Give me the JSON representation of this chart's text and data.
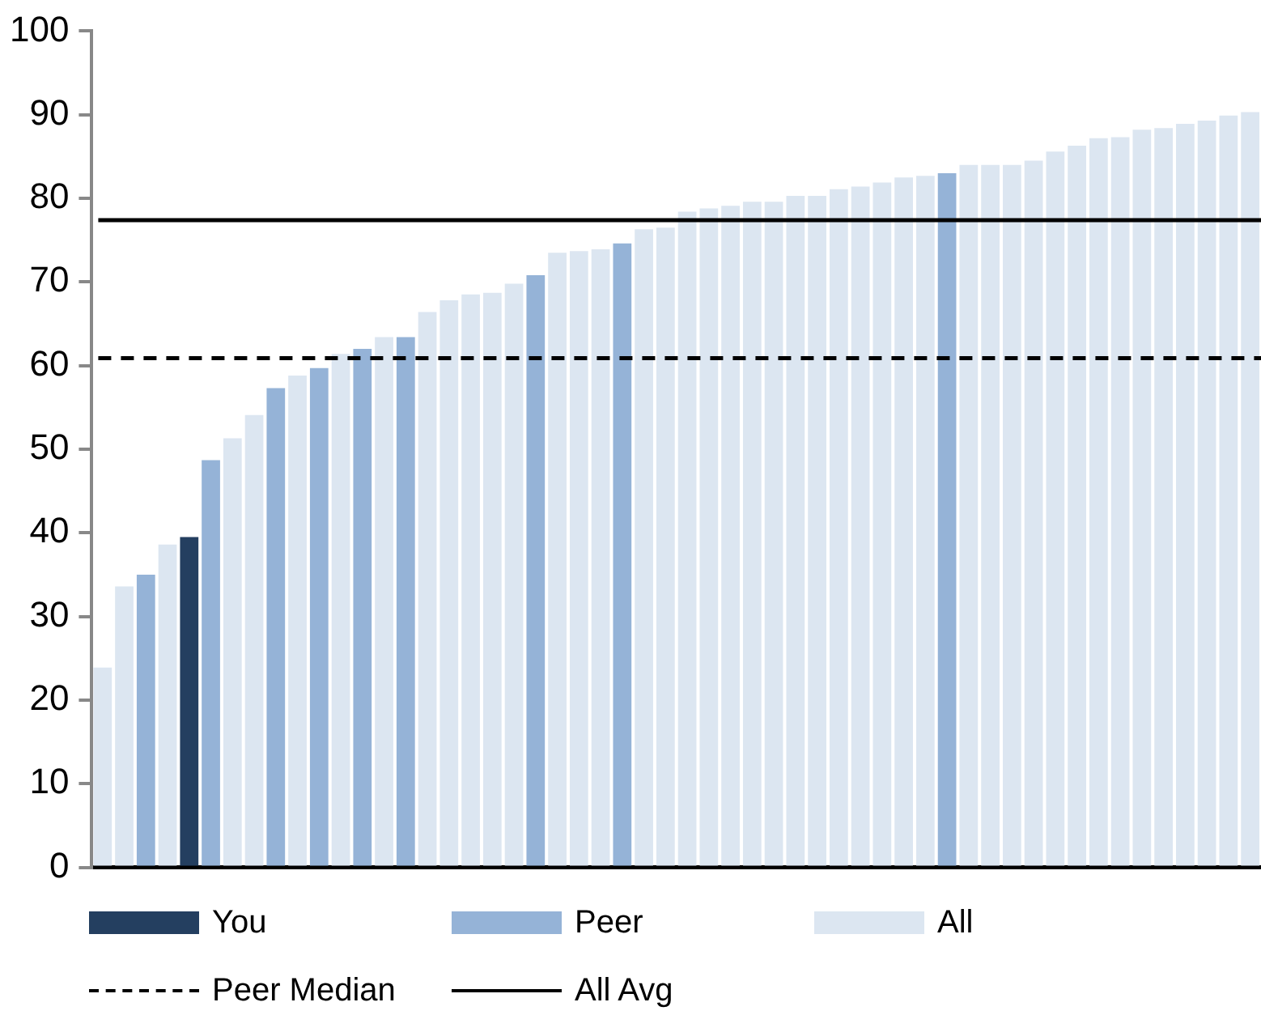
{
  "chart_data": {
    "type": "bar",
    "categories": [
      null,
      null,
      null,
      null,
      null,
      null,
      null,
      null,
      null,
      null,
      null,
      null,
      null,
      null,
      null,
      null,
      null,
      null,
      null,
      null,
      null,
      null,
      null,
      null,
      null,
      null,
      null,
      null,
      null,
      null,
      null,
      null,
      null,
      null,
      null,
      null,
      null,
      null,
      null,
      null,
      null,
      null,
      null,
      null,
      null,
      null,
      null,
      null,
      null,
      null,
      null,
      null,
      null,
      null
    ],
    "series": [
      {
        "name": "You",
        "color": "#243f60",
        "values": [
          null,
          null,
          null,
          null,
          39.5,
          null,
          null,
          null,
          null,
          null,
          null,
          null,
          null,
          null,
          null,
          null,
          null,
          null,
          null,
          null,
          null,
          null,
          null,
          null,
          null,
          null,
          null,
          null,
          null,
          null,
          null,
          null,
          null,
          null,
          null,
          null,
          null,
          null,
          null,
          null,
          null,
          null,
          null,
          null,
          null,
          null,
          null,
          null,
          null,
          null,
          null,
          null,
          null,
          null
        ]
      },
      {
        "name": "Peer",
        "color": "#95b3d7",
        "values": [
          null,
          null,
          35.0,
          null,
          null,
          48.7,
          null,
          null,
          57.3,
          null,
          59.7,
          null,
          62.0,
          null,
          63.4,
          null,
          null,
          null,
          null,
          null,
          70.8,
          null,
          null,
          null,
          74.6,
          null,
          null,
          null,
          null,
          null,
          null,
          null,
          null,
          null,
          null,
          null,
          null,
          null,
          null,
          83.0,
          null,
          null,
          null,
          null,
          null,
          null,
          null,
          null,
          null,
          null,
          null,
          null,
          null,
          null
        ]
      },
      {
        "name": "All",
        "color": "#dce6f1",
        "values": [
          23.9,
          33.6,
          null,
          38.6,
          null,
          null,
          51.3,
          54.1,
          null,
          58.8,
          null,
          61.4,
          null,
          63.4,
          null,
          66.4,
          67.8,
          68.5,
          68.7,
          69.8,
          null,
          73.5,
          73.7,
          73.9,
          null,
          76.3,
          76.5,
          78.4,
          78.8,
          79.1,
          79.6,
          79.6,
          80.3,
          80.3,
          81.1,
          81.4,
          81.9,
          82.5,
          82.7,
          null,
          84.0,
          84.0,
          84.0,
          84.5,
          85.6,
          86.3,
          87.2,
          87.3,
          88.2,
          88.4,
          88.9,
          89.3,
          89.9,
          90.3
        ]
      }
    ],
    "ylim": [
      0,
      100
    ],
    "yticks": [
      0,
      10,
      20,
      30,
      40,
      50,
      60,
      70,
      80,
      90,
      100
    ],
    "tick_labels": "y",
    "ref_lines": [
      {
        "axis": "y",
        "value": 60.9,
        "label": "Peer Median",
        "color": "#000000",
        "line_style": "dashed"
      },
      {
        "axis": "y",
        "value": 77.4,
        "label": "All Avg",
        "color": "#000000",
        "line_style": "solid"
      }
    ],
    "legend": "bottom"
  }
}
